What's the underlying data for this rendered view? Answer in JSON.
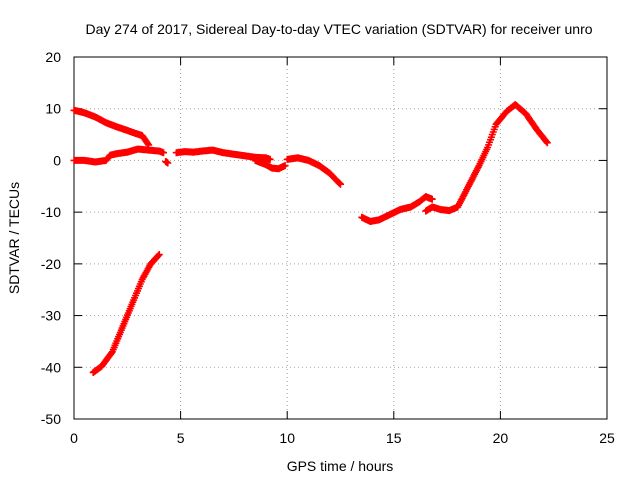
{
  "chart_data": {
    "type": "scatter",
    "title": "Day 274 of 2017, Sidereal Day-to-day VTEC variation (SDTVAR) for receiver unro",
    "xlabel": "GPS time / hours",
    "ylabel": "SDTVAR / TECUs",
    "xlim": [
      0,
      25
    ],
    "ylim": [
      -50,
      20
    ],
    "xticks": [
      0,
      5,
      10,
      15,
      20,
      25
    ],
    "yticks": [
      -50,
      -40,
      -30,
      -20,
      -10,
      0,
      10,
      20
    ],
    "grid": true,
    "marker": "plus",
    "color": "#ff0000",
    "series": [
      {
        "name": "segment-1",
        "x": [
          0.0,
          0.5,
          1.0,
          1.5,
          2.0,
          2.5,
          2.9,
          3.2,
          3.5
        ],
        "y": [
          9.7,
          9.2,
          8.4,
          7.3,
          6.5,
          5.8,
          5.2,
          4.8,
          3.0
        ]
      },
      {
        "name": "segment-2",
        "x": [
          0.0,
          0.5,
          1.0,
          1.5,
          1.7
        ],
        "y": [
          0.0,
          0.0,
          -0.3,
          0.0,
          1.0
        ]
      },
      {
        "name": "segment-3",
        "x": [
          1.7,
          2.0,
          2.5,
          3.0,
          3.5,
          4.0,
          4.2
        ],
        "y": [
          1.0,
          1.3,
          1.6,
          2.2,
          2.0,
          1.8,
          1.5
        ]
      },
      {
        "name": "segment-4",
        "x": [
          4.3,
          4.4
        ],
        "y": [
          -0.2,
          -0.5
        ]
      },
      {
        "name": "segment-5",
        "x": [
          4.8,
          5.2,
          5.6,
          6.0,
          6.5,
          7.0,
          7.5,
          8.0,
          8.5,
          9.0,
          9.2
        ],
        "y": [
          1.5,
          1.7,
          1.6,
          1.8,
          2.0,
          1.5,
          1.2,
          0.9,
          0.6,
          0.5,
          0.2
        ]
      },
      {
        "name": "segment-6",
        "x": [
          8.5,
          9.0,
          9.3,
          9.6,
          9.9
        ],
        "y": [
          0.0,
          -0.8,
          -1.5,
          -1.6,
          -1.0
        ]
      },
      {
        "name": "segment-7",
        "x": [
          10.0,
          10.5,
          11.0,
          11.5,
          12.0,
          12.3,
          12.5
        ],
        "y": [
          0.2,
          0.5,
          0.0,
          -1.0,
          -2.5,
          -3.8,
          -4.6
        ]
      },
      {
        "name": "segment-8",
        "x": [
          0.9,
          1.3,
          1.8,
          2.3,
          2.8,
          3.2,
          3.6,
          4.0
        ],
        "y": [
          -41.0,
          -39.8,
          -37.0,
          -32.0,
          -27.0,
          -23.0,
          -20.0,
          -18.2
        ]
      },
      {
        "name": "segment-9",
        "x": [
          13.5,
          13.9,
          14.3,
          14.8,
          15.3,
          15.8,
          16.2,
          16.5,
          16.8
        ],
        "y": [
          -11.0,
          -11.8,
          -11.5,
          -10.5,
          -9.5,
          -9.0,
          -8.0,
          -7.0,
          -7.5
        ]
      },
      {
        "name": "segment-10",
        "x": [
          16.5,
          16.8,
          17.2,
          17.6,
          18.0,
          18.5,
          19.0,
          19.4,
          19.8,
          20.3,
          20.7,
          21.2,
          21.7,
          22.2
        ],
        "y": [
          -9.8,
          -9.0,
          -9.5,
          -9.7,
          -9.0,
          -5.0,
          -1.0,
          2.5,
          7.0,
          9.5,
          10.8,
          9.0,
          6.0,
          3.4
        ]
      }
    ]
  }
}
